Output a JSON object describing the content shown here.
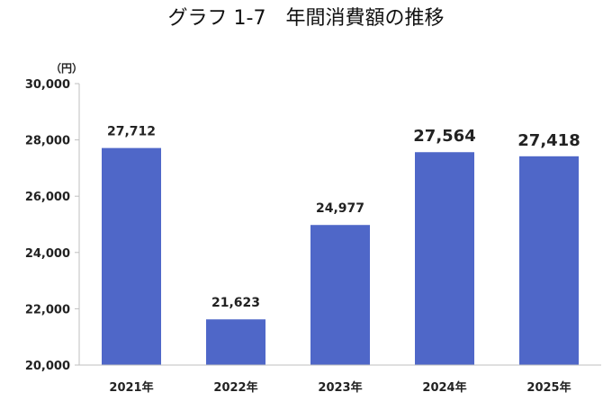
{
  "chart_data": {
    "type": "bar",
    "title": "グラフ 1-7　年間消費額の推移",
    "unit_label": "（円）",
    "categories": [
      "2021年",
      "2022年",
      "2023年",
      "2024年",
      "2025年"
    ],
    "values": [
      27712,
      21623,
      24977,
      27564,
      27418
    ],
    "value_labels": [
      "27,712",
      "21,623",
      "24,977",
      "27,564",
      "27,418"
    ],
    "highlighted": [
      false,
      false,
      false,
      true,
      true
    ],
    "ylim": [
      20000,
      30000
    ],
    "y_ticks": [
      20000,
      22000,
      24000,
      26000,
      28000,
      30000
    ],
    "y_tick_labels": [
      "20,000",
      "22,000",
      "24,000",
      "26,000",
      "28,000",
      "30,000"
    ],
    "grid": false,
    "legend": "none",
    "bar_color": "#4f67c8"
  }
}
